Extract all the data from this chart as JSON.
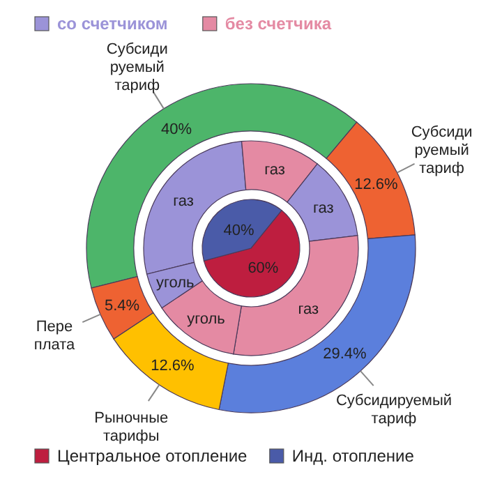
{
  "chart_data": [
    {
      "type": "donut",
      "categories": [
        "Субсиди\nруемый\nтариф",
        "Субсиди\nруемый\nтариф",
        "Субсидируемый\nтариф",
        "Рыночные\nтарифы",
        "Пере\nплата"
      ],
      "values": [
        40,
        12.6,
        29.4,
        12.6,
        5.4
      ],
      "colors": [
        "#4db56a",
        "#ee6232",
        "#5b7fdc",
        "#ffc000",
        "#ee6232"
      ],
      "value_labels": [
        "40%",
        "12.6%",
        "29.4%",
        "12.6%",
        "5.4%"
      ]
    },
    {
      "type": "donut",
      "categories": [
        "газ",
        "газ",
        "газ",
        "газ",
        "уголь",
        "уголь"
      ],
      "values": [
        27.5,
        12,
        12.5,
        29.5,
        13,
        5.5
      ],
      "colors": [
        "#9b93d8",
        "#e48aa3",
        "#9b93d8",
        "#e48aa3",
        "#e48aa3",
        "#9b93d8"
      ],
      "annotations": [
        "со счетчиком",
        "без счетчика"
      ]
    },
    {
      "type": "pie",
      "categories": [
        "Центральное отопление",
        "Инд. отопление"
      ],
      "values": [
        60,
        40
      ],
      "colors": [
        "#be1e3f",
        "#4a5ba8"
      ],
      "value_labels": [
        "60%",
        "40%"
      ],
      "legend": "bottom"
    }
  ]
}
